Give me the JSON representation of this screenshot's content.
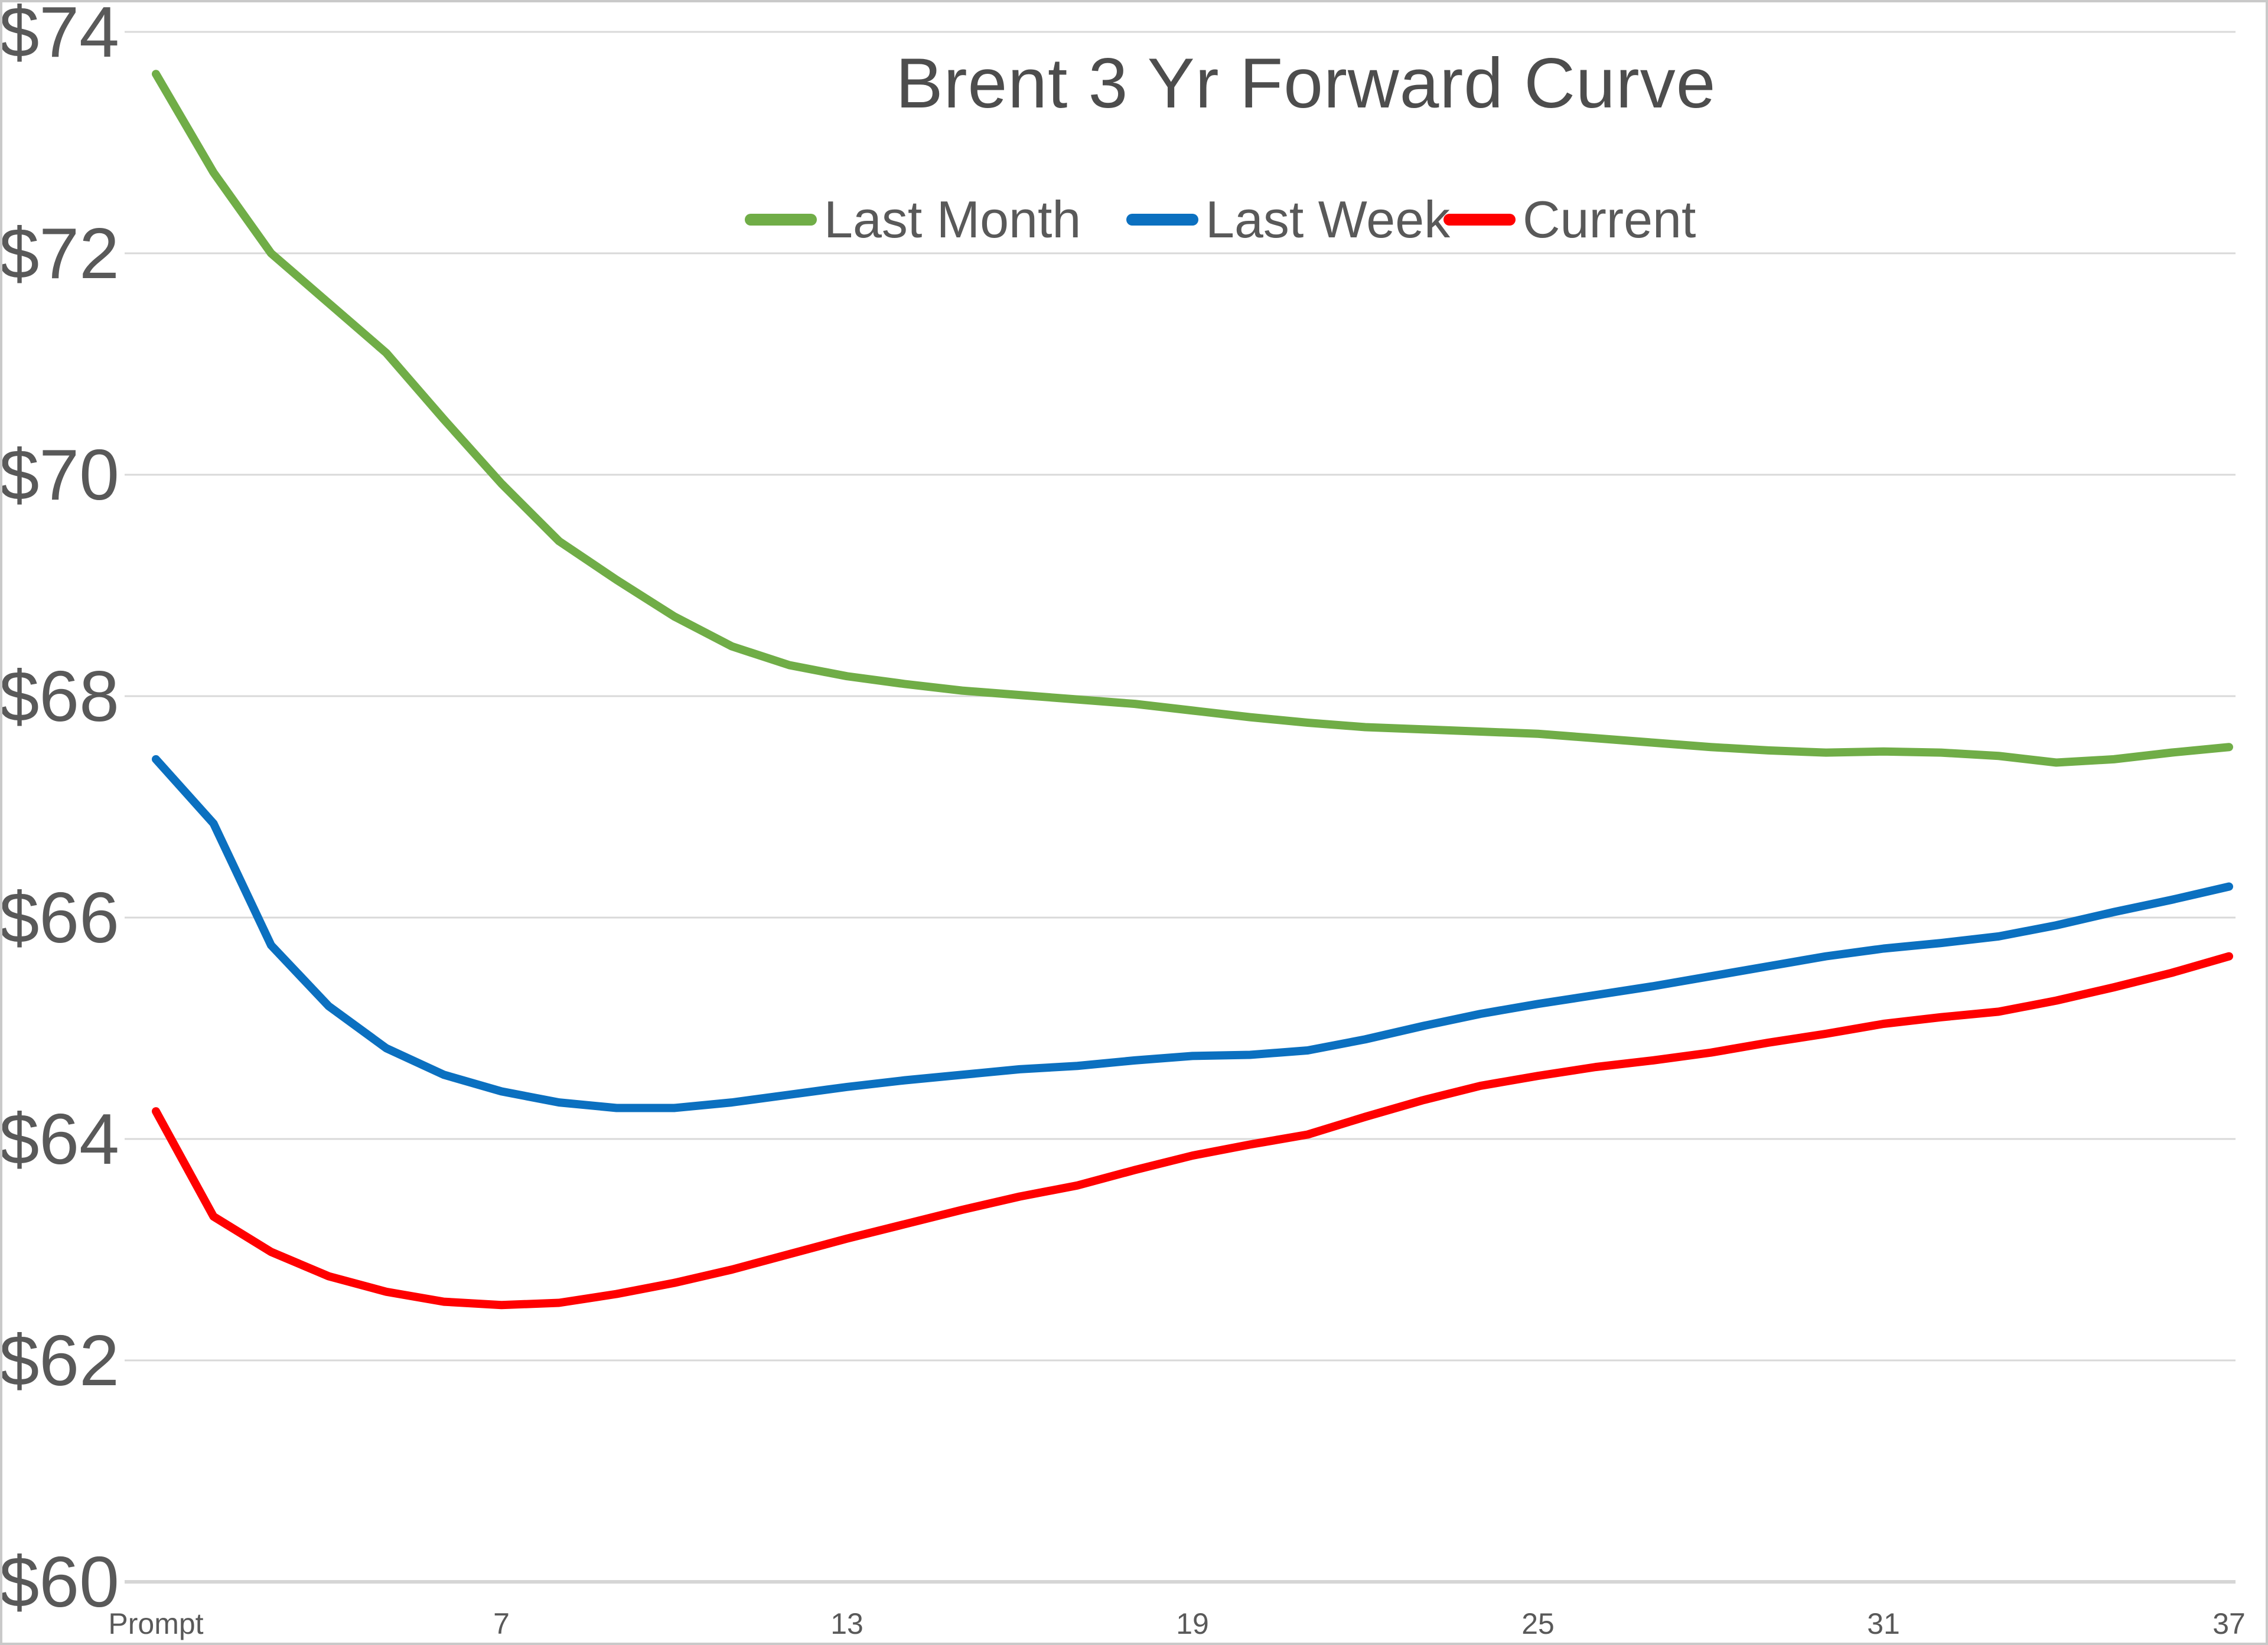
{
  "colors": {
    "background": "#FFFFFF",
    "border": "#C9C9C9",
    "gridline": "#D9D9D9",
    "axis_line": "#D6D6D6",
    "axis_text": "#595959",
    "title_text": "#4D4D4D",
    "series_green": "#70AD47",
    "series_blue": "#0B70C0",
    "series_red": "#FF0000"
  },
  "chart_data": {
    "type": "line",
    "title": "Brent 3 Yr Forward Curve",
    "legend_position": "top",
    "grid": "horizontal",
    "x_axis": {
      "label": "",
      "range": [
        1,
        37
      ],
      "tick_positions": [
        1,
        7,
        13,
        19,
        25,
        31,
        37
      ],
      "tick_labels": [
        "Prompt",
        "7",
        "13",
        "19",
        "25",
        "31",
        "37"
      ]
    },
    "y_axis": {
      "label": "",
      "range": [
        60,
        74
      ],
      "tick_values": [
        74,
        72,
        70,
        68,
        66,
        64,
        62,
        60
      ],
      "tick_labels": [
        "$74",
        "$72",
        "$70",
        "$68",
        "$66",
        "$64",
        "$62",
        "$60"
      ]
    },
    "x_months": [
      1,
      2,
      3,
      4,
      5,
      6,
      7,
      8,
      9,
      10,
      11,
      12,
      13,
      14,
      15,
      16,
      17,
      18,
      19,
      20,
      21,
      22,
      23,
      24,
      25,
      26,
      27,
      28,
      29,
      30,
      31,
      32,
      33,
      34,
      35,
      36,
      37
    ],
    "series": [
      {
        "name": "Last Month",
        "color": "#70AD47",
        "values": [
          73.62,
          72.73,
          72.0,
          71.55,
          71.1,
          70.5,
          69.92,
          69.4,
          69.05,
          68.72,
          68.45,
          68.28,
          68.18,
          68.11,
          68.05,
          68.01,
          67.97,
          67.93,
          67.87,
          67.81,
          67.76,
          67.72,
          67.7,
          67.68,
          67.66,
          67.62,
          67.58,
          67.54,
          67.51,
          67.49,
          67.5,
          67.49,
          67.46,
          67.4,
          67.43,
          67.49,
          67.54
        ]
      },
      {
        "name": "Last Week",
        "color": "#0B70C0",
        "values": [
          67.43,
          66.85,
          65.75,
          65.2,
          64.82,
          64.58,
          64.43,
          64.33,
          64.28,
          64.28,
          64.33,
          64.4,
          64.47,
          64.53,
          64.58,
          64.63,
          64.66,
          64.71,
          64.75,
          64.76,
          64.8,
          64.9,
          65.02,
          65.13,
          65.22,
          65.3,
          65.38,
          65.47,
          65.56,
          65.65,
          65.72,
          65.77,
          65.83,
          65.93,
          66.05,
          66.16,
          66.28
        ]
      },
      {
        "name": "Current",
        "color": "#FF0000",
        "values": [
          64.25,
          63.3,
          62.98,
          62.76,
          62.62,
          62.53,
          62.5,
          62.52,
          62.6,
          62.7,
          62.82,
          62.96,
          63.1,
          63.23,
          63.36,
          63.48,
          63.58,
          63.72,
          63.85,
          63.95,
          64.04,
          64.2,
          64.35,
          64.48,
          64.57,
          64.65,
          64.71,
          64.78,
          64.87,
          64.95,
          65.04,
          65.1,
          65.15,
          65.25,
          65.37,
          65.5,
          65.65
        ]
      }
    ]
  }
}
